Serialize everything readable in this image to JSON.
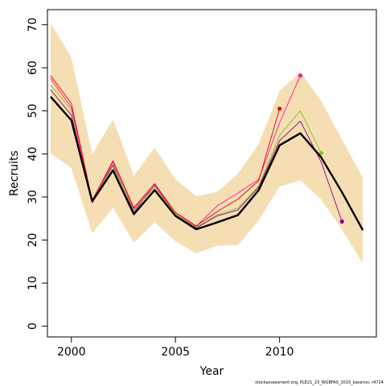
{
  "chart_data": {
    "type": "line",
    "xlabel": "Year",
    "ylabel": "Recruits",
    "xlim": [
      1998.85,
      2014.65
    ],
    "ylim": [
      -2.5,
      73.5
    ],
    "x_ticks": [
      2000,
      2005,
      2010
    ],
    "y_ticks": [
      0,
      10,
      20,
      30,
      40,
      50,
      60,
      70
    ],
    "footnote": "stockassessment.org, PLE21_23_WGBFAS_2015_baserun, r4724",
    "grid": false,
    "legend": "none",
    "confidence_band": {
      "color": "#F5DEB3",
      "x": [
        1999,
        2000,
        2001,
        2002,
        2003,
        2004,
        2005,
        2006,
        2007,
        2008,
        2009,
        2010,
        2011,
        2012,
        2013,
        2014
      ],
      "lower": [
        40.2,
        36.7,
        21.6,
        27.5,
        19.4,
        24.1,
        19.7,
        16.9,
        18.7,
        18.8,
        24.6,
        32.4,
        33.9,
        29.4,
        22.4,
        14.6
      ],
      "upper": [
        70.4,
        62.4,
        39.9,
        48.0,
        34.9,
        41.5,
        34.1,
        30.2,
        31.2,
        35.4,
        42.3,
        54.6,
        59.0,
        52.3,
        43.3,
        34.5
      ]
    },
    "series": [
      {
        "color": "#000000",
        "line_width": 2.4,
        "x": [
          1999,
          2000,
          2001,
          2002,
          2003,
          2004,
          2005,
          2006,
          2007,
          2008,
          2009,
          2010,
          2011,
          2012,
          2013,
          2014
        ],
        "values": [
          53.3,
          47.8,
          29.0,
          36.2,
          26.0,
          31.6,
          25.6,
          22.5,
          24.1,
          25.8,
          31.6,
          42.0,
          44.8,
          39.2,
          31.1,
          22.3
        ],
        "end_marker": false
      },
      {
        "color": "#8B008B",
        "line_width": 0.9,
        "x": [
          1999,
          2000,
          2001,
          2002,
          2003,
          2004,
          2005,
          2006,
          2007,
          2008,
          2009,
          2010,
          2011,
          2012,
          2013
        ],
        "values": [
          54.9,
          49.0,
          28.9,
          37.5,
          26.4,
          32.8,
          25.8,
          22.8,
          25.6,
          27.0,
          32.3,
          43.1,
          47.6,
          38.1,
          24.3
        ],
        "end_marker": true
      },
      {
        "color": "#7FC31C",
        "line_width": 0.9,
        "x": [
          1999,
          2000,
          2001,
          2002,
          2003,
          2004,
          2005,
          2006,
          2007,
          2008,
          2009,
          2010,
          2011,
          2012
        ],
        "values": [
          56.0,
          50.2,
          29.4,
          37.0,
          26.9,
          32.3,
          26.0,
          23.0,
          25.9,
          27.4,
          32.6,
          44.3,
          50.0,
          40.2
        ],
        "end_marker": true
      },
      {
        "color": "#FF1493",
        "line_width": 0.9,
        "x": [
          1999,
          2000,
          2001,
          2002,
          2003,
          2004,
          2005,
          2006,
          2007,
          2008,
          2009,
          2010,
          2011
        ],
        "values": [
          57.5,
          50.8,
          28.6,
          38.2,
          27.2,
          32.7,
          26.3,
          23.2,
          27.9,
          30.9,
          34.1,
          47.2,
          58.2
        ],
        "end_marker": true
      },
      {
        "color": "#E0000F",
        "line_width": 0.9,
        "x": [
          1999,
          2000,
          2001,
          2002,
          2003,
          2004,
          2005,
          2006,
          2007,
          2008,
          2009,
          2010
        ],
        "values": [
          58.2,
          51.7,
          29.2,
          38.4,
          27.5,
          33.1,
          26.4,
          23.3,
          26.6,
          29.5,
          33.8,
          50.5
        ],
        "end_marker": true
      }
    ]
  }
}
